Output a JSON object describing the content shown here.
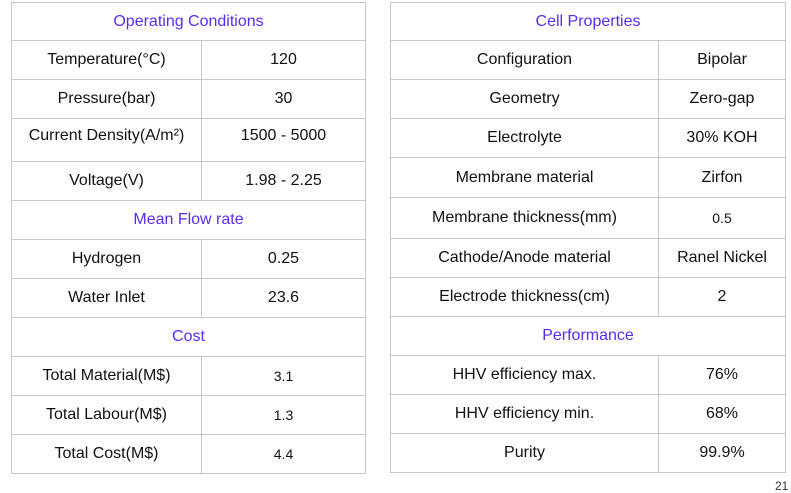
{
  "left": {
    "operating_title": "Operating Conditions",
    "rows_operating": [
      {
        "label": "Temperature(°C)",
        "value": "120"
      },
      {
        "label": "Pressure(bar)",
        "value": "30"
      },
      {
        "label": "Current Density(A/m²)",
        "value": "1500 - 5000"
      },
      {
        "label": "Voltage(V)",
        "value": "1.98 - 2.25"
      }
    ],
    "flow_title": "Mean Flow rate",
    "rows_flow": [
      {
        "label": "Hydrogen",
        "value": "0.25"
      },
      {
        "label": "Water Inlet",
        "value": "23.6"
      }
    ],
    "cost_title": "Cost",
    "rows_cost": [
      {
        "label": "Total Material(M$)",
        "value": "3.1"
      },
      {
        "label": "Total Labour(M$)",
        "value": "1.3"
      },
      {
        "label": "Total Cost(M$)",
        "value": "4.4"
      }
    ]
  },
  "right": {
    "cell_title": "Cell Properties",
    "rows_cell": [
      {
        "label": "Configuration",
        "value": "Bipolar"
      },
      {
        "label": "Geometry",
        "value": "Zero-gap"
      },
      {
        "label": "Electrolyte",
        "value": "30% KOH"
      },
      {
        "label": "Membrane material",
        "value": "Zirfon"
      },
      {
        "label": "Membrane thickness(mm)",
        "value": "0.5"
      },
      {
        "label": "Cathode/Anode material",
        "value": "Ranel Nickel"
      },
      {
        "label": "Electrode thickness(cm)",
        "value": "2"
      }
    ],
    "performance_title": "Performance",
    "rows_performance": [
      {
        "label": "HHV efficiency max.",
        "value": "76%"
      },
      {
        "label": "HHV efficiency min.",
        "value": "68%"
      },
      {
        "label": "Purity",
        "value": "99.9%"
      }
    ]
  },
  "corner_glyph": "21"
}
